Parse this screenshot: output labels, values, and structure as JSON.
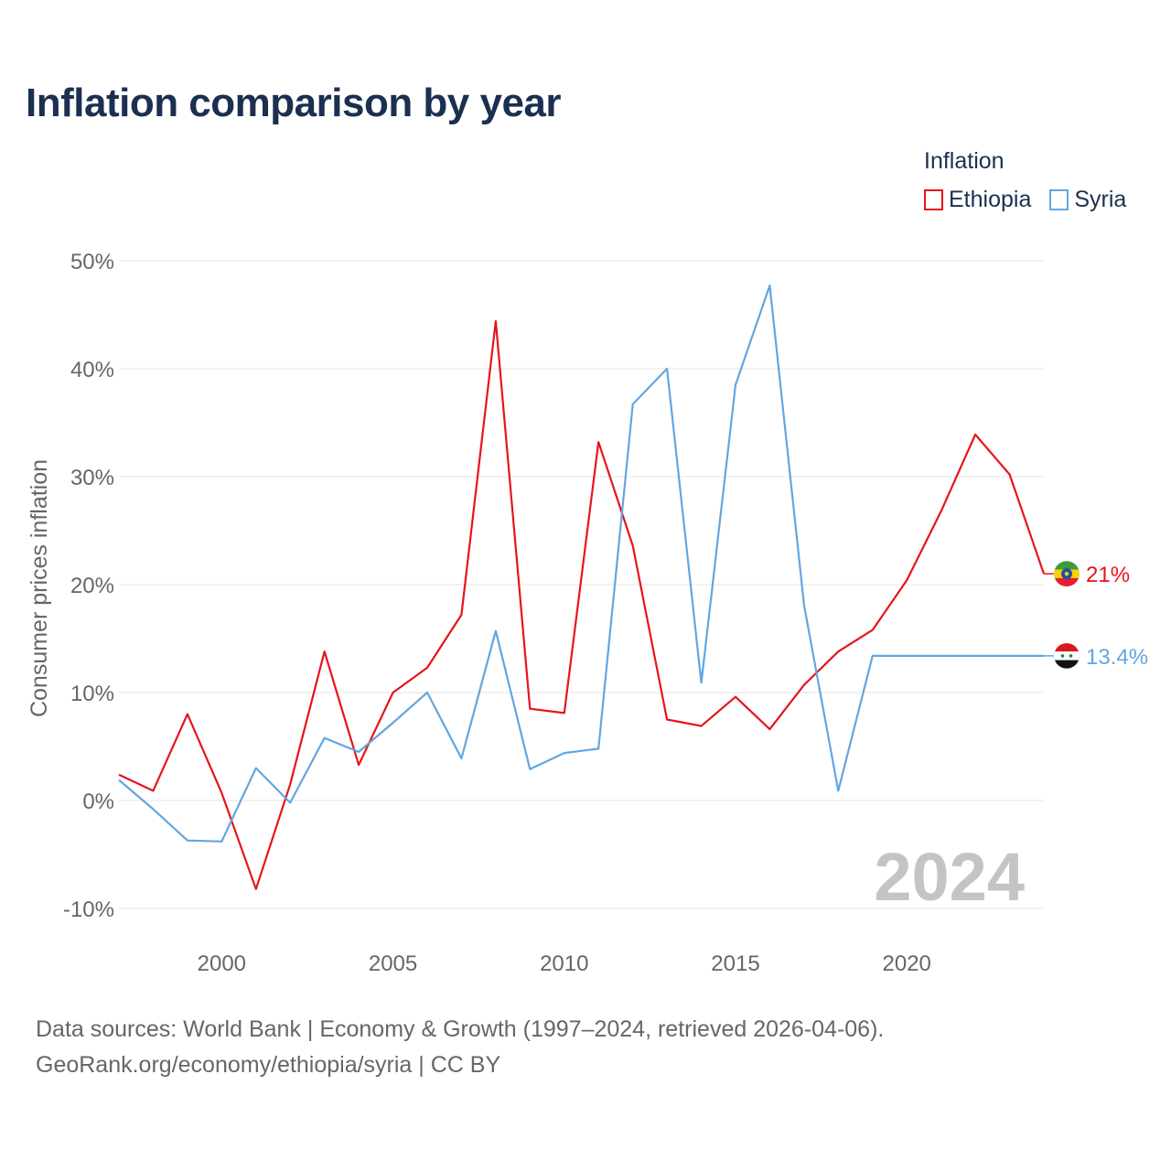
{
  "title": "Inflation comparison by year",
  "legend": {
    "title": "Inflation",
    "items": [
      {
        "name": "Ethiopia",
        "color": "#e8131b"
      },
      {
        "name": "Syria",
        "color": "#62a6e0"
      }
    ]
  },
  "footer": {
    "line1": "Data sources: World Bank | Economy & Growth (1997–2024, retrieved 2026-04-06).",
    "line2": "GeoRank.org/economy/ethiopia/syria | CC BY"
  },
  "chart_data": {
    "type": "line",
    "title": "Inflation comparison by year",
    "xlabel": "",
    "ylabel": "Consumer prices inflation",
    "x": [
      1997,
      1998,
      1999,
      2000,
      2001,
      2002,
      2003,
      2004,
      2005,
      2006,
      2007,
      2008,
      2009,
      2010,
      2011,
      2012,
      2013,
      2014,
      2015,
      2016,
      2017,
      2018,
      2019,
      2020,
      2021,
      2022,
      2023,
      2024
    ],
    "xlim": [
      1997,
      2024
    ],
    "ylim": [
      -10,
      50
    ],
    "x_ticks": [
      2000,
      2005,
      2010,
      2015,
      2020
    ],
    "x_tick_labels": [
      "2000",
      "2005",
      "2010",
      "2015",
      "2020"
    ],
    "y_ticks": [
      -10,
      0,
      10,
      20,
      30,
      40,
      50
    ],
    "y_tick_labels": [
      "-10%",
      "0%",
      "10%",
      "20%",
      "30%",
      "40%",
      "50%"
    ],
    "grid": true,
    "year_watermark": "2024",
    "series": [
      {
        "name": "Ethiopia",
        "color": "#e8131b",
        "end_label": "21%",
        "values": [
          2.4,
          0.9,
          8.0,
          0.7,
          -8.2,
          1.5,
          13.8,
          3.3,
          10.0,
          12.3,
          17.2,
          44.4,
          8.5,
          8.1,
          33.2,
          23.6,
          7.5,
          6.9,
          9.6,
          6.6,
          10.7,
          13.8,
          15.8,
          20.4,
          26.8,
          33.9,
          30.2,
          21.0
        ]
      },
      {
        "name": "Syria",
        "color": "#62a6e0",
        "end_label": "13.4%",
        "values": [
          1.9,
          -0.8,
          -3.7,
          -3.8,
          3.0,
          -0.2,
          5.8,
          4.5,
          7.2,
          10.0,
          3.9,
          15.7,
          2.9,
          4.4,
          4.8,
          36.7,
          40.0,
          10.9,
          38.5,
          47.7,
          18.1,
          0.9,
          13.4,
          13.4,
          13.4,
          13.4,
          13.4,
          13.4
        ]
      }
    ]
  }
}
